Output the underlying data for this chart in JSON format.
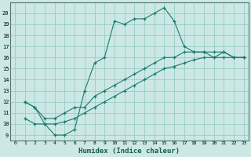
{
  "title": "",
  "xlabel": "Humidex (Indice chaleur)",
  "bg_color": "#cce8e4",
  "grid_color": "#99ccc6",
  "line_color": "#1a7a6e",
  "xlim": [
    -0.5,
    23.5
  ],
  "ylim": [
    8.5,
    21.0
  ],
  "xticks": [
    0,
    1,
    2,
    3,
    4,
    5,
    6,
    7,
    8,
    9,
    10,
    11,
    12,
    13,
    14,
    15,
    16,
    17,
    18,
    19,
    20,
    21,
    22,
    23
  ],
  "yticks": [
    9,
    10,
    11,
    12,
    13,
    14,
    15,
    16,
    17,
    18,
    19,
    20
  ],
  "line1_x": [
    1,
    2,
    3,
    4,
    5,
    6,
    7,
    8,
    9,
    10,
    11,
    12,
    13,
    14,
    15,
    16,
    17,
    18,
    19,
    20,
    21,
    22,
    23
  ],
  "line1_y": [
    12.0,
    11.5,
    10.0,
    9.0,
    9.0,
    9.5,
    13.0,
    15.5,
    16.0,
    19.3,
    19.0,
    19.5,
    19.5,
    20.0,
    20.5,
    19.3,
    17.0,
    16.5,
    16.5,
    16.0,
    16.5,
    16.0,
    16.0
  ],
  "line2_x": [
    1,
    2,
    3,
    4,
    5,
    6,
    7,
    8,
    9,
    10,
    11,
    12,
    13,
    14,
    15,
    16,
    17,
    18,
    19,
    20,
    21,
    22,
    23
  ],
  "line2_y": [
    12.0,
    11.5,
    10.5,
    10.5,
    11.0,
    11.5,
    11.5,
    12.5,
    13.0,
    13.5,
    14.0,
    14.5,
    15.0,
    15.5,
    16.0,
    16.0,
    16.5,
    16.5,
    16.5,
    16.5,
    16.5,
    16.0,
    16.0
  ],
  "line3_x": [
    1,
    2,
    3,
    4,
    5,
    6,
    7,
    8,
    9,
    10,
    11,
    12,
    13,
    14,
    15,
    16,
    17,
    18,
    19,
    20,
    21,
    22,
    23
  ],
  "line3_y": [
    10.5,
    10.0,
    10.0,
    10.0,
    10.2,
    10.5,
    11.0,
    11.5,
    12.0,
    12.5,
    13.0,
    13.5,
    14.0,
    14.5,
    15.0,
    15.2,
    15.5,
    15.8,
    16.0,
    16.0,
    16.0,
    16.0,
    16.0
  ]
}
